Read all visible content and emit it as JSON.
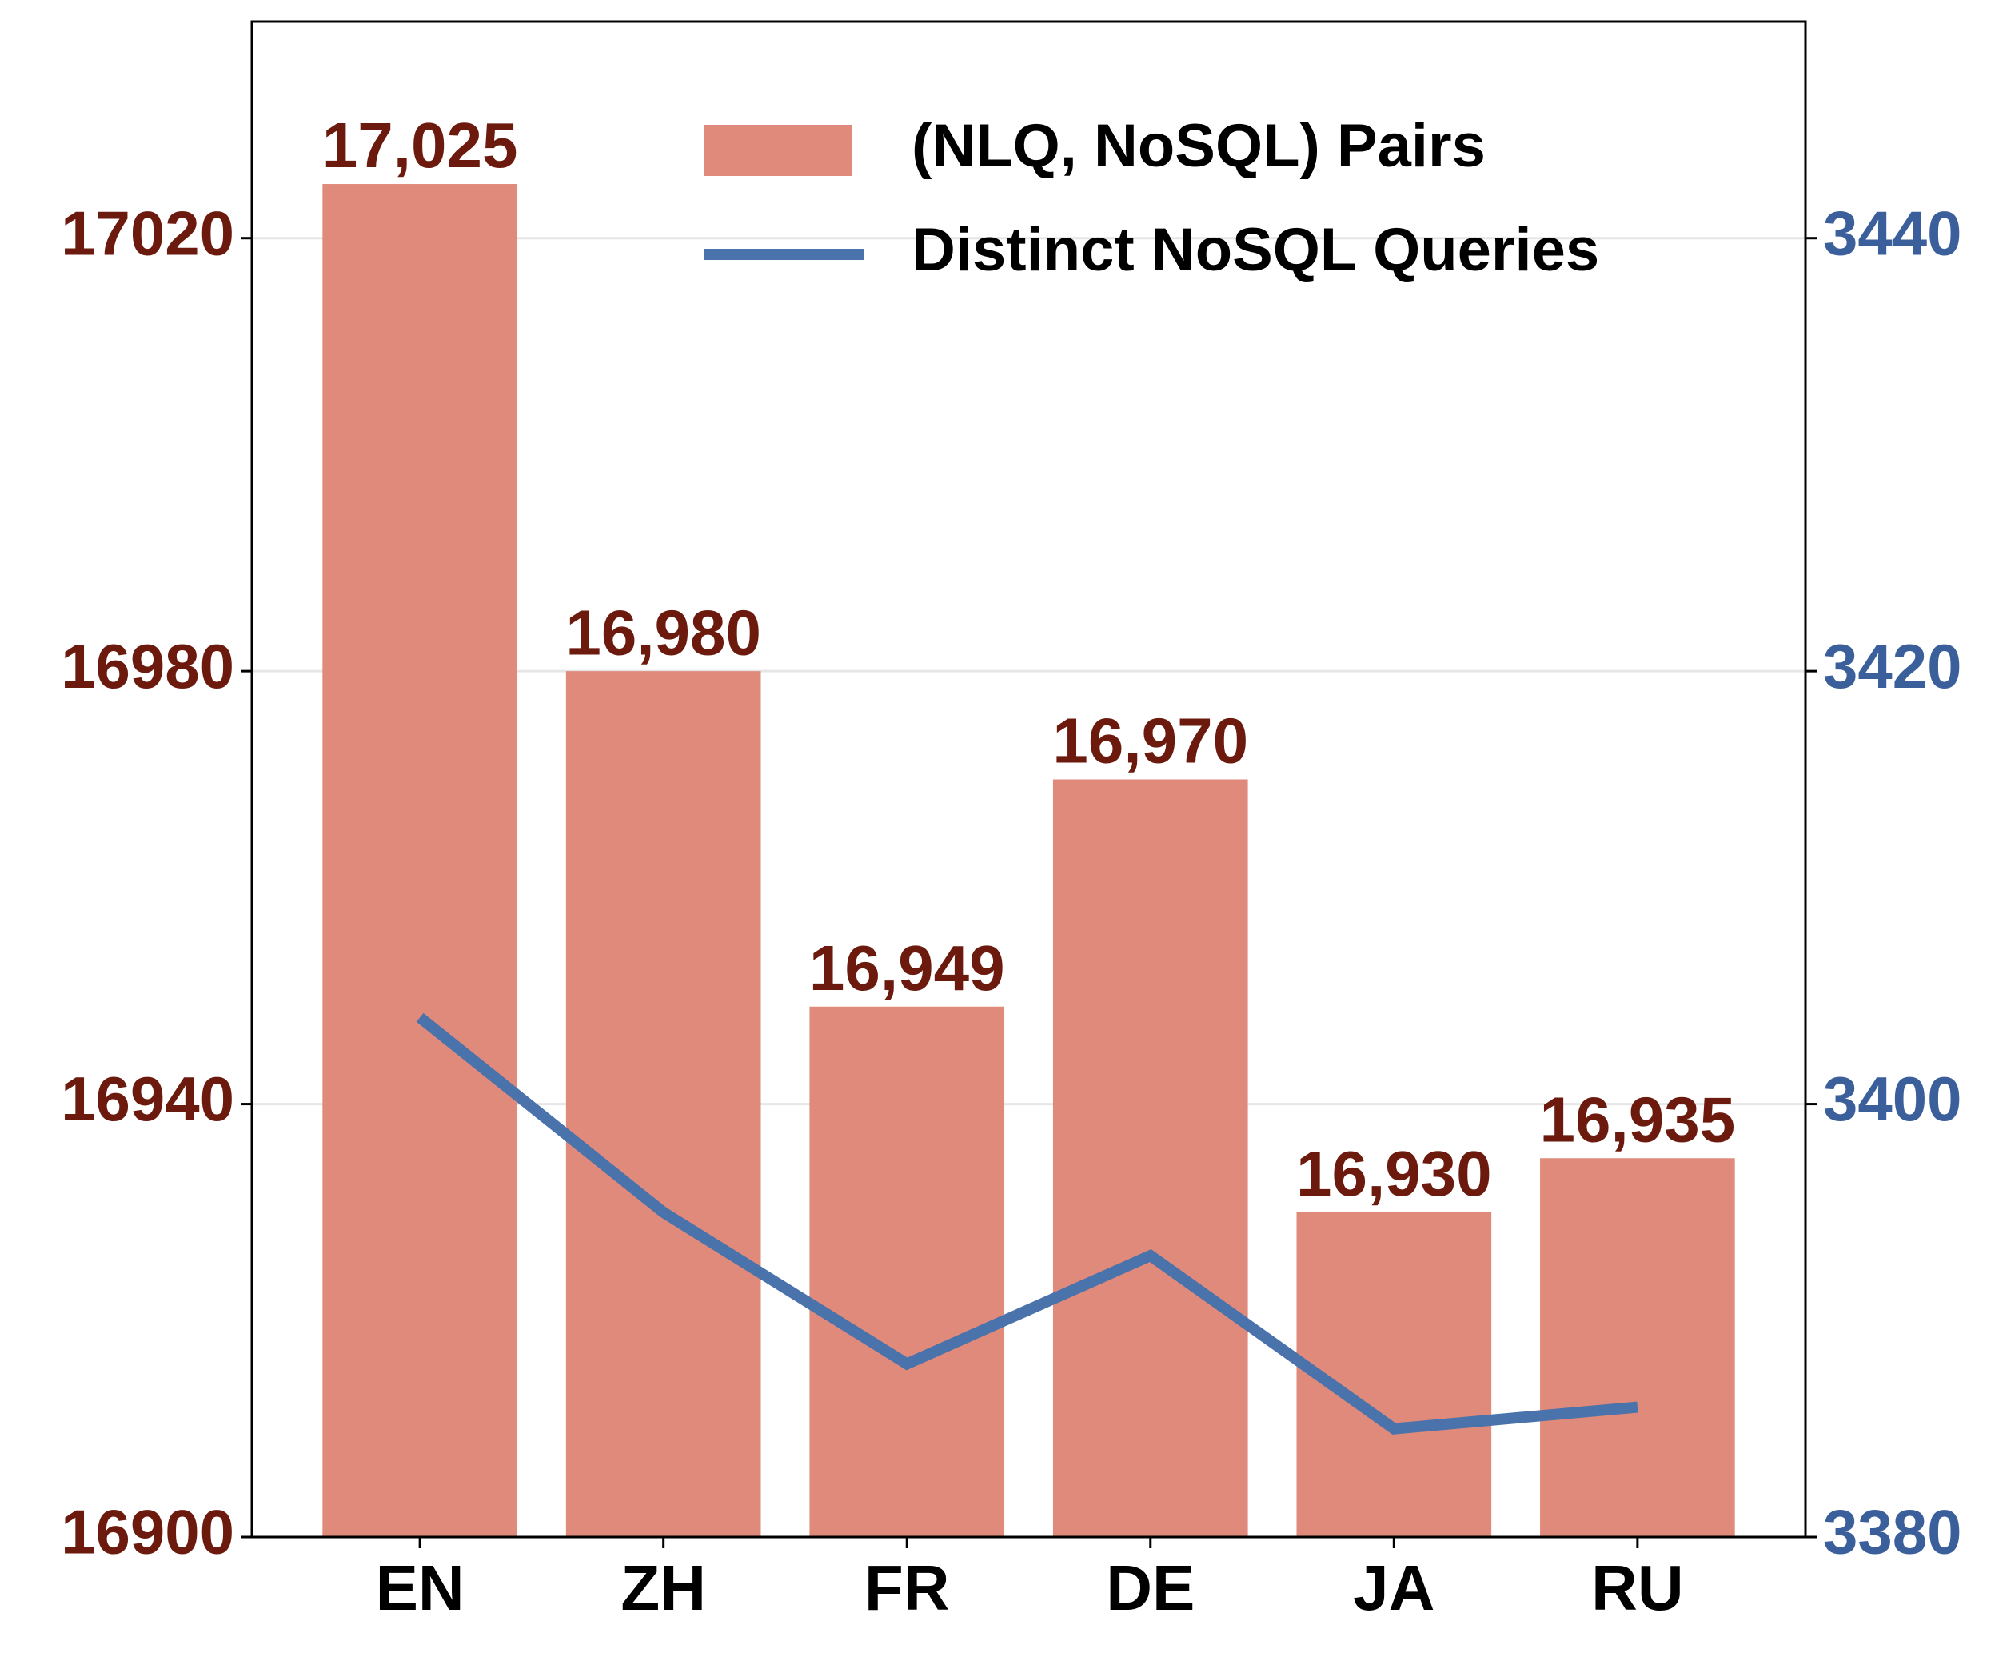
{
  "chart_data": {
    "type": "bar_line",
    "categories": [
      "EN",
      "ZH",
      "FR",
      "DE",
      "JA",
      "RU"
    ],
    "series": [
      {
        "name": "(NLQ, NoSQL) Pairs",
        "type": "bar",
        "color": "#df8a7a",
        "label_color": "#6b1a0d",
        "values": [
          17025,
          16980,
          16949,
          16970,
          16930,
          16935
        ],
        "value_labels": [
          "17,025",
          "16,980",
          "16,949",
          "16,970",
          "16,930",
          "16,935"
        ]
      },
      {
        "name": "Distinct NoSQL Queries",
        "type": "line",
        "axis": "y2",
        "color": "#4a72ab",
        "values": [
          3404,
          3395,
          3388,
          3393,
          3385,
          3386
        ]
      }
    ],
    "ylim": [
      16900,
      17040
    ],
    "yticks": [
      16900,
      16940,
      16980,
      17020
    ],
    "ytick_color": "#6b1a0d",
    "y2lim": [
      3380,
      3450
    ],
    "y2ticks": [
      3380,
      3400,
      3420,
      3440
    ],
    "y2tick_color": "#3a5f9a",
    "grid": true,
    "legend": "upper right"
  }
}
